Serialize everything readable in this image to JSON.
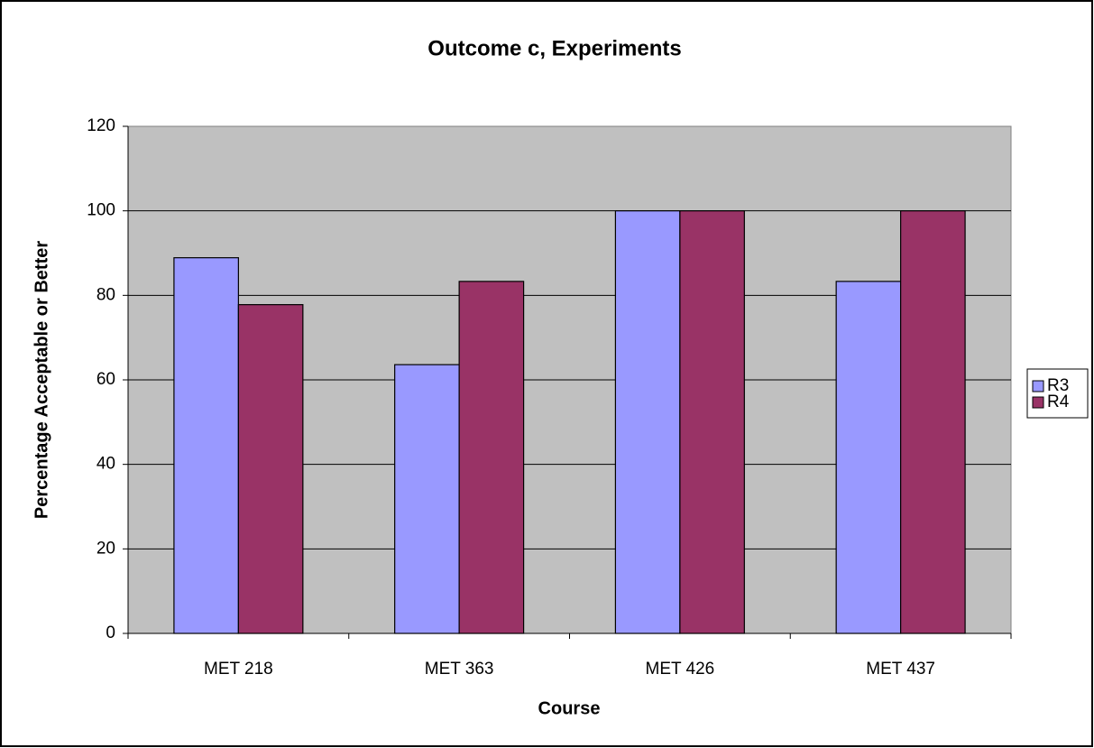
{
  "chart_data": {
    "type": "bar",
    "title": "Outcome c, Experiments",
    "x_label": "Course",
    "y_label": "Percentage Acceptable or Better",
    "categories": [
      "MET 218",
      "MET 363",
      "MET 426",
      "MET 437"
    ],
    "series": [
      {
        "name": "R3",
        "color": "#9999ff",
        "values": [
          88.9,
          63.6,
          100,
          83.3
        ]
      },
      {
        "name": "R4",
        "color": "#993366",
        "values": [
          77.8,
          83.3,
          100,
          100
        ]
      }
    ],
    "ylim": [
      0,
      120
    ],
    "yticks": [
      0,
      20,
      40,
      60,
      80,
      100,
      120
    ],
    "grid": true,
    "legend": "right"
  }
}
